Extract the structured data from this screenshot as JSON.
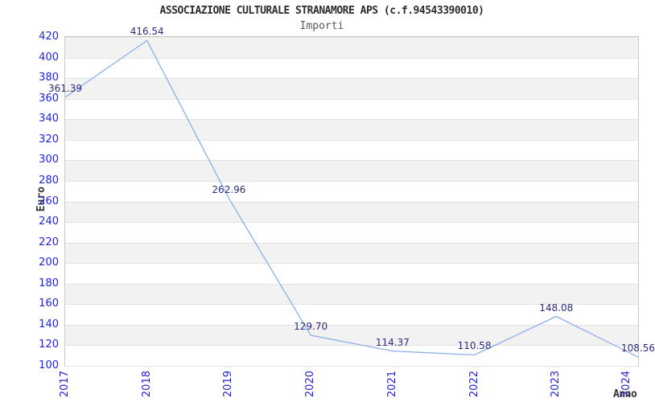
{
  "header": {
    "title": "ASSOCIAZIONE CULTURALE STRANAMORE APS (c.f.94543390010)",
    "subtitle": "Importi"
  },
  "chart_data": {
    "type": "line",
    "title": "ASSOCIAZIONE CULTURALE STRANAMORE APS (c.f.94543390010)",
    "subtitle": "Importi",
    "xlabel": "Anno",
    "ylabel": "Euro",
    "x": [
      "2017",
      "2018",
      "2019",
      "2020",
      "2021",
      "2022",
      "2023",
      "2024"
    ],
    "series": [
      {
        "name": "Importi",
        "values": [
          361.39,
          416.54,
          262.96,
          129.7,
          114.37,
          110.58,
          148.08,
          108.56
        ]
      }
    ],
    "point_labels": [
      "361.39",
      "416.54",
      "262.96",
      "129.70",
      "114.37",
      "110.58",
      "148.08",
      "108.56"
    ],
    "ylim": [
      100,
      420
    ],
    "ytick_step": 20,
    "legend": "none",
    "grid": "horizontal gridlines with alternating gray bands",
    "colors": {
      "line": "#8ab0e8",
      "tick_label": "#2222dd",
      "data_label": "#2b2b80",
      "band": "#f2f2f2",
      "band_alt": "#ffffff",
      "gridline": "#e2e2e2",
      "border": "#c9c9c9",
      "title": "#2b2b2b",
      "subtitle": "#5a5a5a",
      "axis_title": "#333333"
    }
  }
}
